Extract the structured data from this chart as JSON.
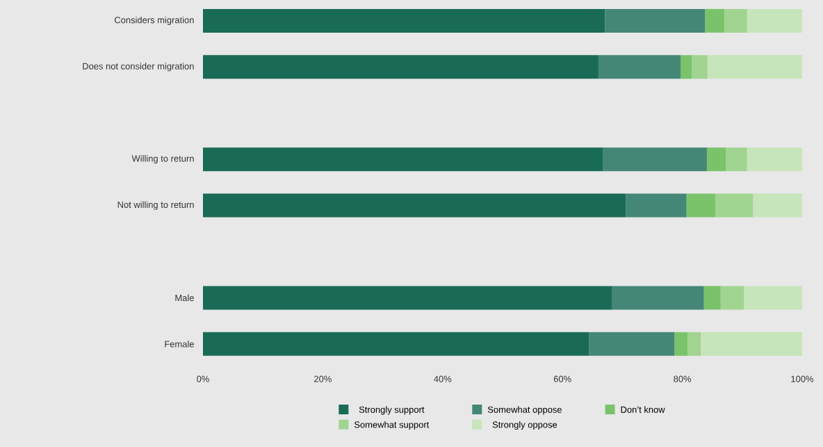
{
  "chart_data": {
    "type": "bar",
    "orientation": "horizontal",
    "stacked": true,
    "legend": "bottom",
    "categories": [
      "Considers migration",
      "Does not consider migration",
      null,
      "Willing to return",
      "Not willing to return",
      null,
      "Male",
      "Female"
    ],
    "series": [
      {
        "name": "Strongly support",
        "color": "#1a6b55",
        "values": [
          67.1,
          66.0,
          null,
          66.7,
          70.6,
          null,
          68.3,
          64.4
        ]
      },
      {
        "name": "Somewhat oppose",
        "color": "#448777",
        "values": [
          16.7,
          13.7,
          null,
          17.4,
          10.1,
          null,
          15.3,
          14.3
        ]
      },
      {
        "name": "Don’t know",
        "color": "#7ac36a",
        "values": [
          3.2,
          1.9,
          null,
          3.2,
          4.8,
          null,
          2.8,
          2.2
        ]
      },
      {
        "name": "Somewhat support",
        "color": "#a1d490",
        "values": [
          3.8,
          2.6,
          null,
          3.5,
          6.3,
          null,
          3.9,
          2.2
        ]
      },
      {
        "name": "Strongly oppose",
        "color": "#c7e5bb",
        "values": [
          9.2,
          15.8,
          null,
          9.2,
          8.2,
          null,
          9.7,
          16.9
        ]
      }
    ],
    "xlim": [
      0,
      100
    ],
    "xticks": [
      {
        "value": 0,
        "label": "0%"
      },
      {
        "value": 20,
        "label": "20%"
      },
      {
        "value": 40,
        "label": "40%"
      },
      {
        "value": 60,
        "label": "60%"
      },
      {
        "value": 80,
        "label": "80%"
      },
      {
        "value": 100,
        "label": "100%"
      }
    ]
  }
}
